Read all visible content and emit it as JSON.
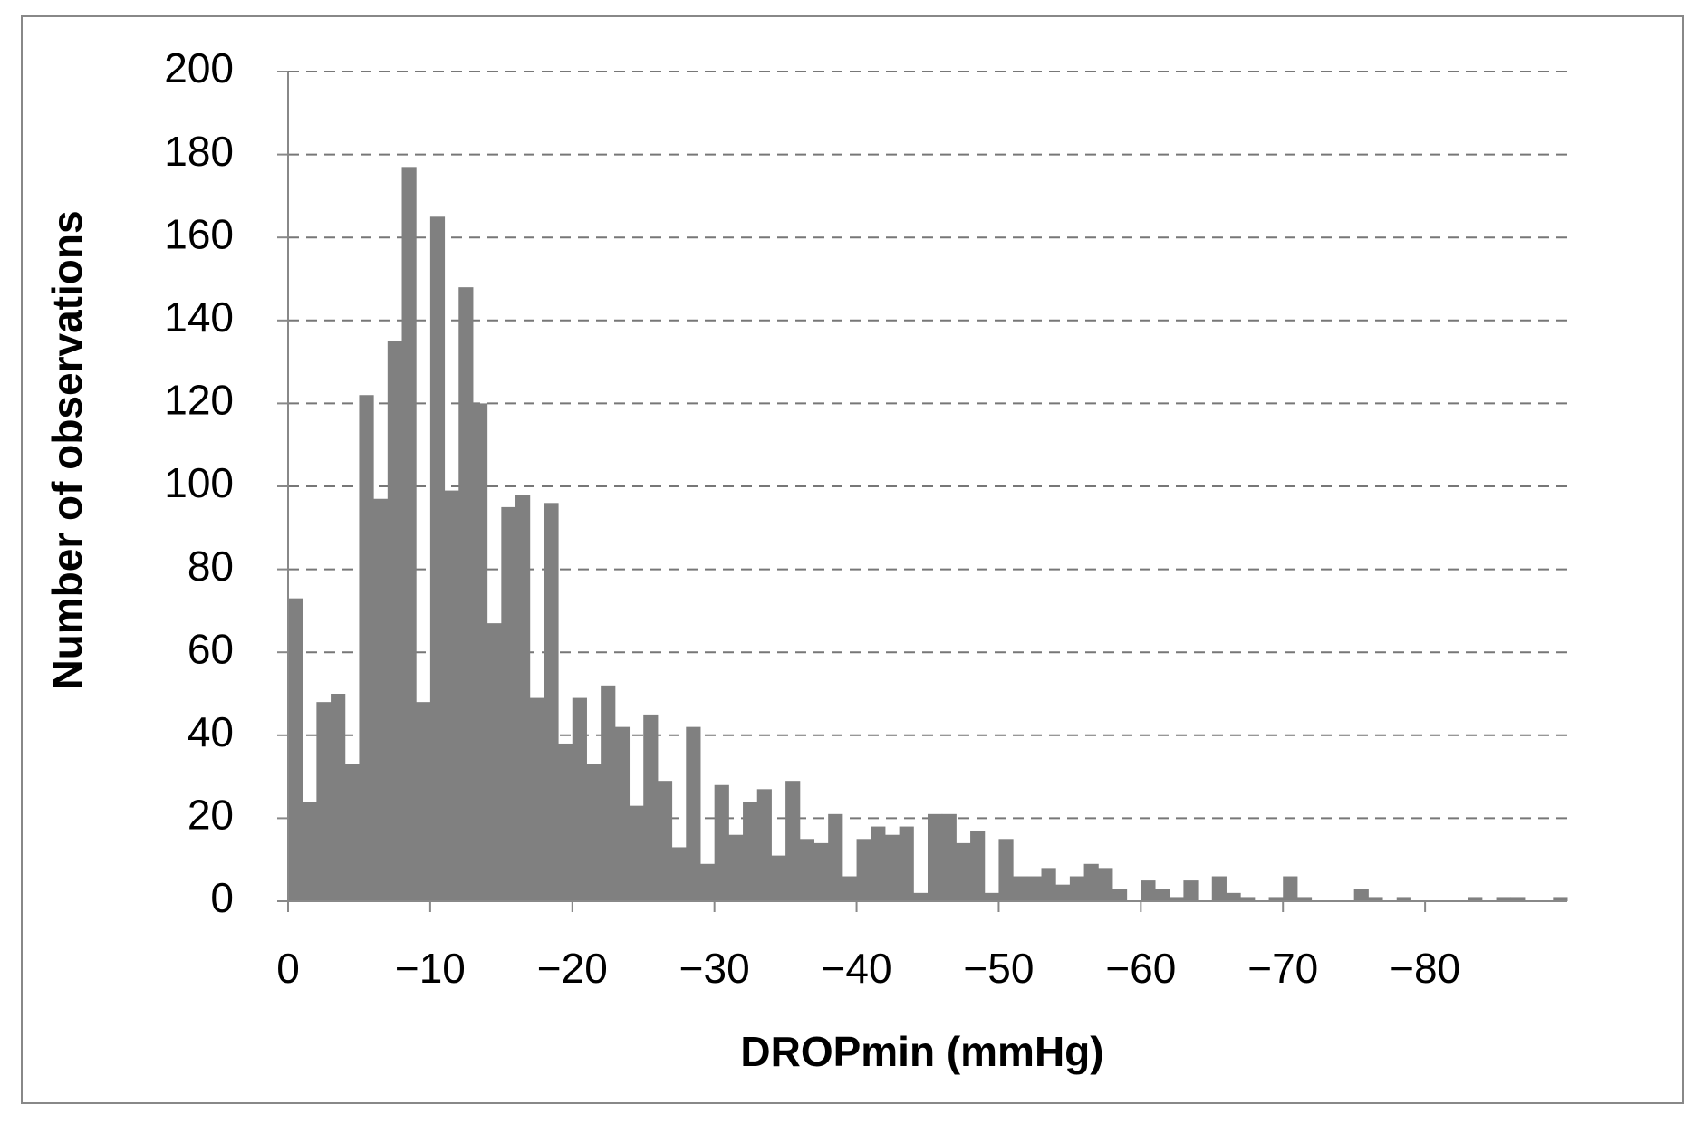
{
  "chart_data": {
    "type": "histogram",
    "x_label": "DROPmin (mmHg)",
    "y_label": "Number of observations",
    "color": "#808080",
    "grid": true,
    "bins": [
      0,
      -1,
      -2,
      -3,
      -4,
      -5,
      -6,
      -7,
      -8,
      -9,
      -10,
      -11,
      -12,
      -13,
      -14,
      -15,
      -16,
      -17,
      -18,
      -19,
      -20,
      -21,
      -22,
      -23,
      -24,
      -25,
      -26,
      -27,
      -28,
      -29,
      -30,
      -31,
      -32,
      -33,
      -34,
      -35,
      -36,
      -37,
      -38,
      -39,
      -40,
      -41,
      -42,
      -43,
      -44,
      -45,
      -46,
      -47,
      -48,
      -49,
      -50,
      -51,
      -52,
      -53,
      -54,
      -55,
      -56,
      -57,
      -58,
      -59,
      -60,
      -61,
      -62,
      -63,
      -64,
      -65,
      -66,
      -67,
      -68,
      -69,
      -70,
      -71,
      -72,
      -73,
      -74,
      -75,
      -76,
      -77,
      -78,
      -79,
      -80,
      -81,
      -82,
      -83,
      -84,
      -85,
      -86,
      -87,
      -88,
      -89,
      -90
    ],
    "counts": [
      73,
      24,
      48,
      50,
      33,
      122,
      97,
      135,
      177,
      48,
      165,
      99,
      148,
      120,
      67,
      95,
      98,
      49,
      96,
      38,
      49,
      33,
      52,
      42,
      23,
      45,
      29,
      13,
      42,
      9,
      28,
      16,
      24,
      27,
      11,
      29,
      15,
      14,
      21,
      6,
      15,
      18,
      16,
      18,
      2,
      21,
      21,
      14,
      17,
      2,
      15,
      6,
      6,
      8,
      4,
      6,
      9,
      8,
      3,
      0,
      5,
      3,
      1,
      5,
      0,
      6,
      2,
      1,
      0,
      1,
      6,
      1,
      0,
      0,
      0,
      3,
      1,
      0,
      1,
      0,
      0,
      0,
      0,
      1,
      0,
      1,
      1,
      0,
      0,
      1
    ],
    "xlim": [
      0,
      -90
    ],
    "xticks": [
      0,
      {
        "value": -10,
        "label": "−10"
      },
      {
        "value": -20,
        "label": "−20"
      },
      {
        "value": -30,
        "label": "−30"
      },
      {
        "value": -40,
        "label": "−40"
      },
      {
        "value": -50,
        "label": "−50"
      },
      {
        "value": -60,
        "label": "−60"
      },
      {
        "value": -70,
        "label": "−70"
      },
      {
        "value": -80,
        "label": "−80"
      }
    ],
    "ylim": [
      0,
      200
    ],
    "yticks": [
      0,
      20,
      40,
      60,
      80,
      100,
      120,
      140,
      160,
      180,
      200
    ]
  }
}
